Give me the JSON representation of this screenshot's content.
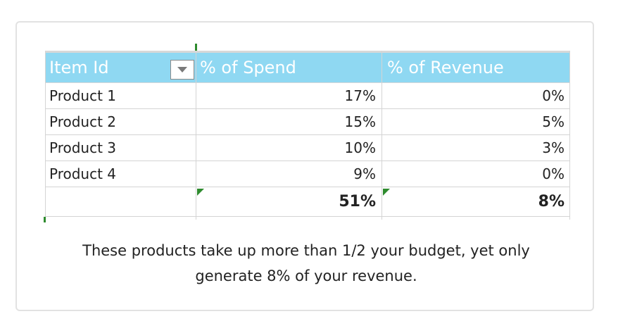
{
  "table": {
    "columns": [
      "Item Id",
      "% of Spend",
      "% of Revenue"
    ],
    "filter_icon": "dropdown-triangle-icon",
    "header_color": "#8fd8f2",
    "rows": [
      {
        "item": "Product 1",
        "spend": "17%",
        "revenue": "0%"
      },
      {
        "item": "Product 2",
        "spend": "15%",
        "revenue": "5%"
      },
      {
        "item": "Product 3",
        "spend": "10%",
        "revenue": "3%"
      },
      {
        "item": "Product 4",
        "spend": "9%",
        "revenue": "0%"
      }
    ],
    "totals": {
      "item": "",
      "spend": "51%",
      "revenue": "8%"
    }
  },
  "caption": {
    "line1": "These products take up more than 1/2 your budget, yet only",
    "line2": "generate 8% of your revenue."
  }
}
